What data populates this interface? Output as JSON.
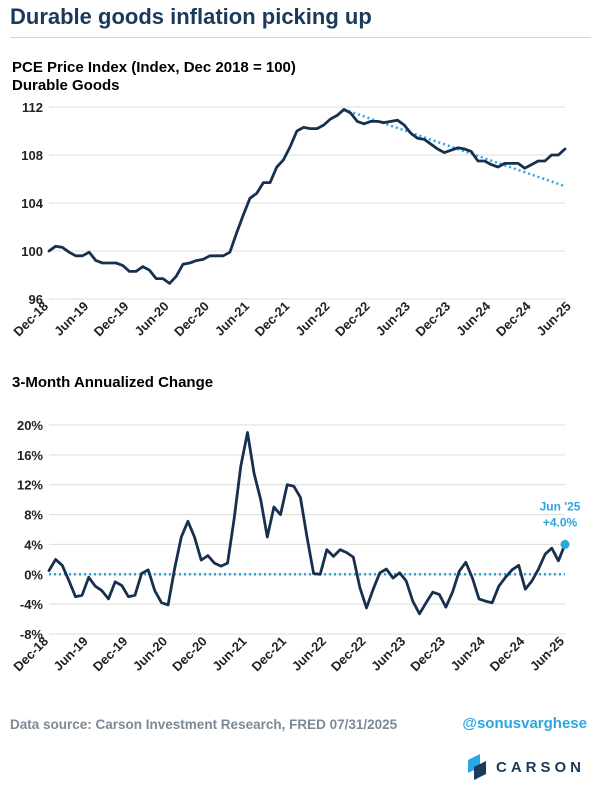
{
  "title": "Durable goods inflation picking up",
  "footer": {
    "source": "Data source: Carson Investment Research, FRED   07/31/2025",
    "handle": "@sonusvarghese",
    "logo_text": "CARSON"
  },
  "colors": {
    "series": "#17304f",
    "trend": "#2aa6e0",
    "zero_line": "#2aa6e0",
    "annotation": "#2aa6e0",
    "grid": "#dcdcdc",
    "title": "#1a3a5c"
  },
  "chart_data": [
    {
      "type": "line",
      "title": "PCE Price Index (Index, Dec 2018 = 100)",
      "subtitle": "Durable Goods",
      "x_tick_labels": [
        "Dec-18",
        "Jun-19",
        "Dec-19",
        "Jun-20",
        "Dec-20",
        "Jun-21",
        "Dec-21",
        "Jun-22",
        "Dec-22",
        "Jun-23",
        "Dec-23",
        "Jun-24",
        "Dec-24",
        "Jun-25"
      ],
      "yticks": [
        "96",
        "100",
        "104",
        "108",
        "112"
      ],
      "ylim": [
        96,
        112
      ],
      "grid": "horizontal",
      "series": [
        {
          "values": [
            100.0,
            100.4,
            100.3,
            99.9,
            99.6,
            99.6,
            99.9,
            99.2,
            99.0,
            99.0,
            99.0,
            98.8,
            98.3,
            98.3,
            98.7,
            98.4,
            97.7,
            97.7,
            97.3,
            97.9,
            98.9,
            99.0,
            99.2,
            99.3,
            99.6,
            99.6,
            99.6,
            99.9,
            101.5,
            103.0,
            104.4,
            104.8,
            105.7,
            105.7,
            107.0,
            107.6,
            108.7,
            110.0,
            110.3,
            110.2,
            110.2,
            110.5,
            111.0,
            111.3,
            111.8,
            111.5,
            110.8,
            110.6,
            110.8,
            110.8,
            110.7,
            110.8,
            110.9,
            110.5,
            109.8,
            109.4,
            109.3,
            108.9,
            108.5,
            108.2,
            108.4,
            108.6,
            108.5,
            108.3,
            107.5,
            107.5,
            107.2,
            107.0,
            107.3,
            107.3,
            107.3,
            106.9,
            107.2,
            107.5,
            107.5,
            108.0,
            108.0,
            108.5
          ]
        }
      ],
      "trendline": {
        "x_start_index": 44,
        "x_end_index": 77,
        "start_value": 111.8,
        "end_value": 105.4
      }
    },
    {
      "type": "line",
      "title": "3-Month Annualized Change",
      "x_tick_labels": [
        "Dec-18",
        "Jun-19",
        "Dec-19",
        "Jun-20",
        "Dec-20",
        "Jun-21",
        "Dec-21",
        "Jun-22",
        "Dec-22",
        "Jun-23",
        "Dec-23",
        "Jun-24",
        "Dec-24",
        "Jun-25"
      ],
      "yticks": [
        "20%",
        "16%",
        "12%",
        "8%",
        "4%",
        "0%",
        "-4%",
        "-8%"
      ],
      "ylim": [
        -8,
        20
      ],
      "grid": "horizontal",
      "reference_line": 0,
      "series": [
        {
          "values": [
            0.5,
            2.0,
            1.2,
            -0.8,
            -3.0,
            -2.8,
            -0.4,
            -1.6,
            -2.2,
            -3.3,
            -1.0,
            -1.5,
            -3.0,
            -2.8,
            0.1,
            0.6,
            -2.2,
            -3.8,
            -4.1,
            0.8,
            5.0,
            7.1,
            5.0,
            1.9,
            2.5,
            1.5,
            1.1,
            1.5,
            7.5,
            14.5,
            19.0,
            13.5,
            10.0,
            5.0,
            9.0,
            8.0,
            12.0,
            11.8,
            10.3,
            5.0,
            0.1,
            0.0,
            3.3,
            2.4,
            3.3,
            2.9,
            2.3,
            -1.8,
            -4.5,
            -2.0,
            0.2,
            0.7,
            -0.5,
            0.2,
            -0.9,
            -3.6,
            -5.3,
            -3.8,
            -2.4,
            -2.7,
            -4.4,
            -2.4,
            0.4,
            1.6,
            -0.5,
            -3.3,
            -3.6,
            -3.8,
            -1.6,
            -0.4,
            0.6,
            1.2,
            -2.0,
            -0.9,
            0.7,
            2.7,
            3.5,
            1.8,
            4.0
          ]
        }
      ],
      "annotation": {
        "label_line1": "Jun '25",
        "label_line2": "+4.0%",
        "value": 4.0
      }
    }
  ]
}
